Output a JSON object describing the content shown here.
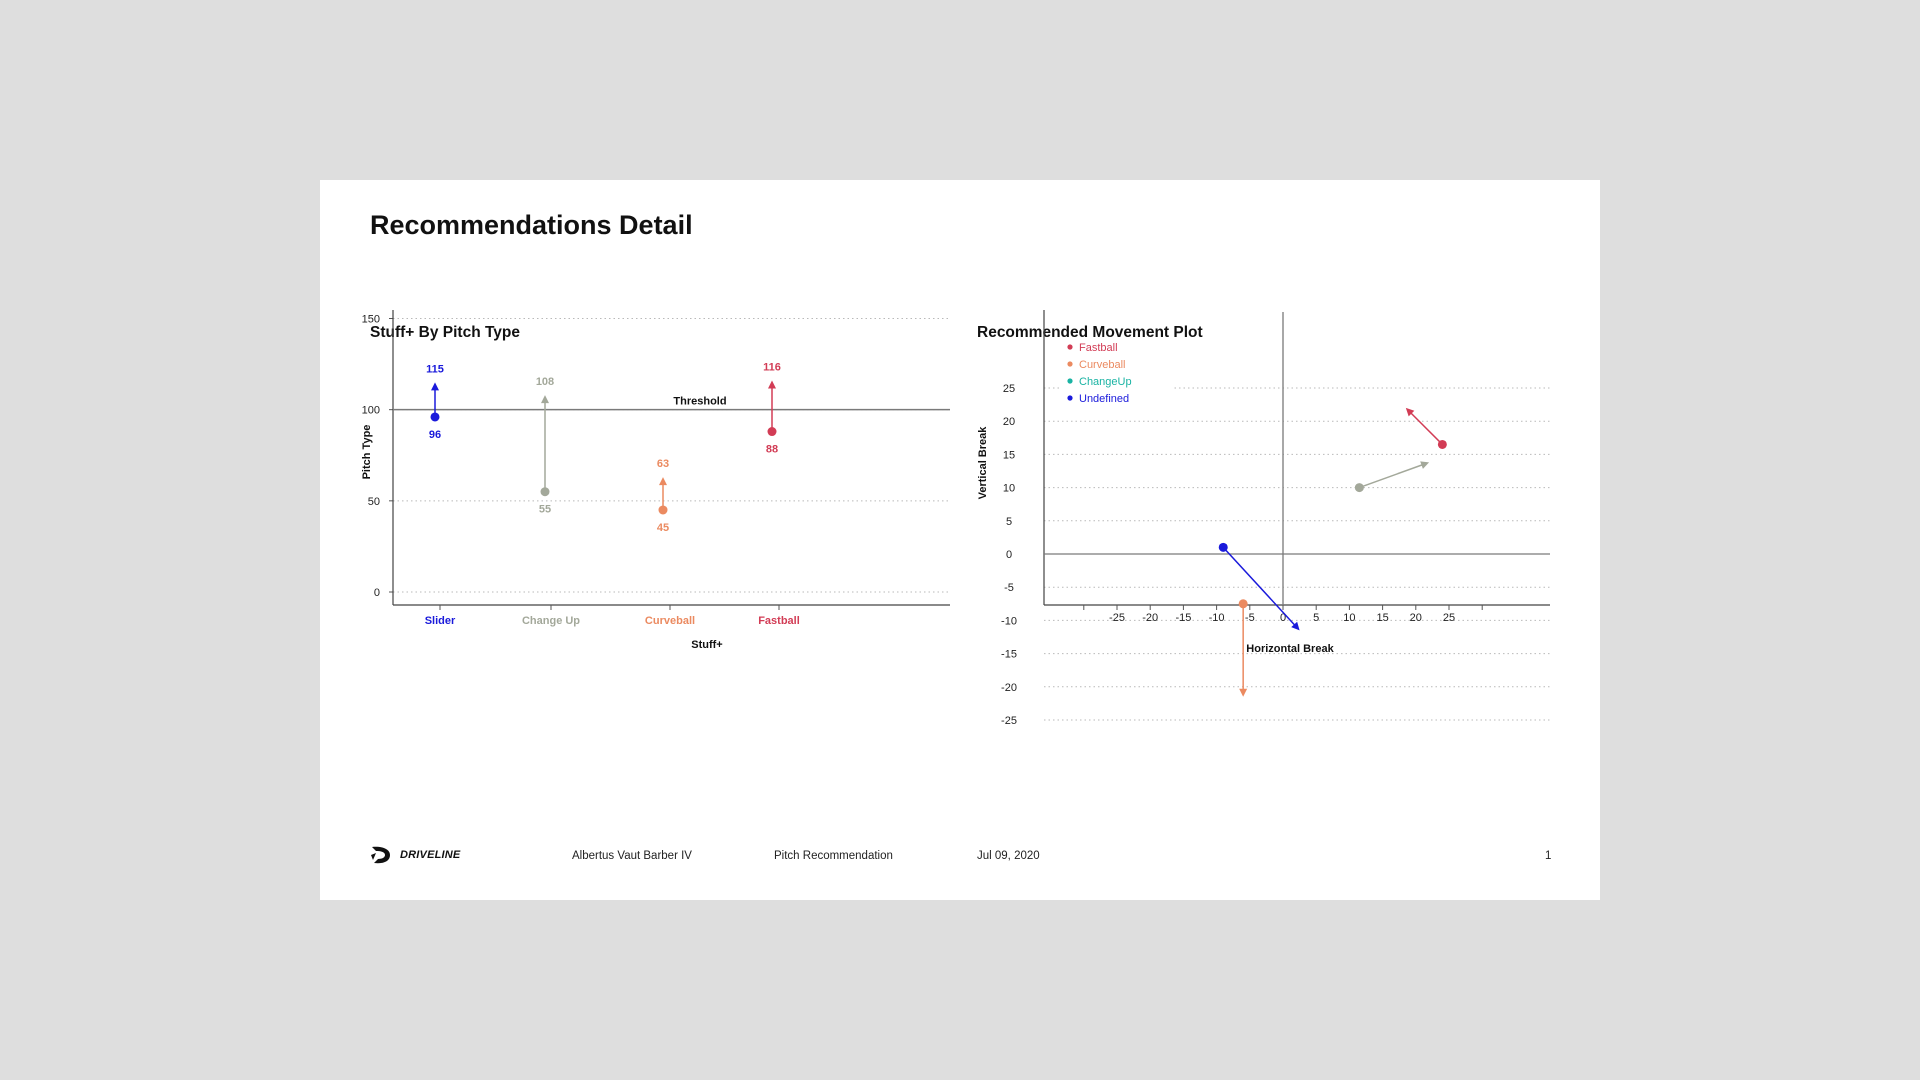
{
  "title": "Recommendations Detail",
  "colors": {
    "slider": "#1a1adb",
    "changeup": "#a3a89a",
    "curveball": "#eb8a60",
    "fastball": "#d23c55",
    "changeup_legend": "#19b3a3"
  },
  "chart_data": [
    {
      "type": "scatter",
      "title": "Stuff+ By Pitch Type",
      "xlabel": "Stuff+",
      "ylabel": "Pitch Type",
      "ylim": [
        0,
        150
      ],
      "yticks": [
        0,
        50,
        100,
        150
      ],
      "categories": [
        "Slider",
        "Change Up",
        "Curveball",
        "Fastball"
      ],
      "threshold": {
        "label": "Threshold",
        "value": 100
      },
      "series": [
        {
          "category": "Slider",
          "current": 96,
          "recommended": 115,
          "color": "#1a1adb"
        },
        {
          "category": "Change Up",
          "current": 55,
          "recommended": 108,
          "color": "#a3a89a"
        },
        {
          "category": "Curveball",
          "current": 45,
          "recommended": 63,
          "color": "#eb8a60"
        },
        {
          "category": "Fastball",
          "current": 88,
          "recommended": 116,
          "color": "#d23c55"
        }
      ],
      "grid": true
    },
    {
      "type": "scatter",
      "title": "Recommended Movement Plot",
      "xlabel": "Horizontal Break",
      "ylabel": "Vertical Break",
      "xlim": [
        -30,
        33
      ],
      "ylim": [
        -27,
        26
      ],
      "xticks": [
        -25,
        -20,
        -15,
        -10,
        -5,
        0,
        5,
        10,
        15,
        20,
        25
      ],
      "yticks": [
        25,
        20,
        15,
        10,
        5,
        0,
        -5,
        -10,
        -15,
        -20,
        -25
      ],
      "legend": [
        {
          "name": "Fastball",
          "color": "#d23c55"
        },
        {
          "name": "Curveball",
          "color": "#eb8a60"
        },
        {
          "name": "ChangeUp",
          "color": "#19b3a3"
        },
        {
          "name": "Undefined",
          "color": "#1a1adb"
        }
      ],
      "legend_position": "top-left",
      "arrows": [
        {
          "pitch": "Fastball",
          "from": [
            24,
            16.5
          ],
          "to": [
            18.5,
            22
          ],
          "color": "#d23c55"
        },
        {
          "pitch": "Change Up",
          "from": [
            11.5,
            10
          ],
          "to": [
            22,
            13.8
          ],
          "color": "#a3a89a"
        },
        {
          "pitch": "Slider",
          "from": [
            -9,
            1
          ],
          "to": [
            2.5,
            -11.5
          ],
          "color": "#1a1adb"
        },
        {
          "pitch": "Curveball",
          "from": [
            -6,
            -7.5
          ],
          "to": [
            -6,
            -21.5
          ],
          "color": "#eb8a60"
        }
      ],
      "grid": true
    }
  ],
  "footer": {
    "brand": "DRIVELINE",
    "name": "Albertus Vaut Barber IV",
    "report": "Pitch Recommendation",
    "date": "Jul 09, 2020",
    "page": "1"
  }
}
